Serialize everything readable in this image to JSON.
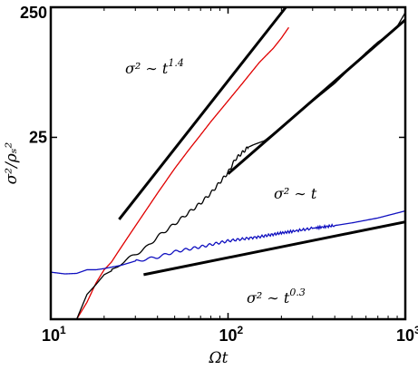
{
  "chart_data": {
    "type": "line",
    "title": "",
    "xlabel": "Ωt",
    "ylabel": "σ²/ρₛ²",
    "x_scale": "log",
    "y_scale": "log",
    "xlim": [
      10,
      1000
    ],
    "ylim": [
      1,
      250
    ],
    "grid": false,
    "x_ticks": [
      {
        "value": 10,
        "base": "10",
        "exp": "1"
      },
      {
        "value": 100,
        "base": "10",
        "exp": "2"
      },
      {
        "value": 1000,
        "base": "10",
        "exp": "3"
      }
    ],
    "y_ticks": [
      {
        "value": 25,
        "label": "25"
      },
      {
        "value": 250,
        "label": "250"
      }
    ],
    "series": [
      {
        "color": "#e00000",
        "x": [
          14,
          16,
          18,
          20,
          22,
          24,
          27,
          30,
          35,
          40,
          50,
          60,
          70,
          80,
          100,
          120,
          150,
          180,
          200,
          220
        ],
        "y": [
          1.0,
          1.35,
          1.9,
          2.4,
          2.75,
          3.3,
          4.2,
          5.2,
          7.1,
          9.3,
          14.4,
          20.0,
          26.1,
          33.0,
          47.7,
          64.5,
          94,
          121,
          145,
          175
        ]
      },
      {
        "color": "#000000",
        "x": [
          14,
          16,
          18,
          20,
          22,
          25,
          30,
          35,
          40,
          50,
          60,
          70,
          80,
          90,
          100,
          110,
          120,
          130,
          140,
          160,
          200,
          250,
          300,
          400,
          500,
          600,
          700,
          800,
          900,
          1000
        ],
        "y": [
          1.0,
          1.55,
          1.85,
          2.2,
          2.35,
          2.7,
          3.15,
          3.6,
          4.3,
          5.4,
          6.6,
          7.8,
          9.3,
          11.3,
          13.4,
          17.0,
          19.0,
          21.0,
          22.0,
          23.5,
          29.8,
          38.9,
          47.3,
          65,
          87.7,
          112,
          135,
          153,
          178,
          228
        ]
      },
      {
        "color": "#1010c0",
        "x": [
          10,
          12,
          14,
          16,
          18,
          20,
          25,
          30,
          40,
          50,
          70,
          100,
          150,
          200,
          300,
          400,
          500,
          700,
          1000
        ],
        "y": [
          2.3,
          2.23,
          2.25,
          2.4,
          2.4,
          2.45,
          2.6,
          2.8,
          3.0,
          3.3,
          3.6,
          4.0,
          4.3,
          4.6,
          5.0,
          5.25,
          5.5,
          6.0,
          6.8
        ]
      }
    ],
    "reference_lines": [
      {
        "label_base": "σ² ∼ t",
        "label_exp": "1.4",
        "x": [
          24.3,
          212
        ],
        "y": [
          5.85,
          250
        ],
        "color": "#000000"
      },
      {
        "label_base": "σ² ∼ t",
        "label_exp": "",
        "x": [
          100,
          1000
        ],
        "y": [
          13.1,
          200
        ],
        "color": "#000000"
      },
      {
        "label_base": "σ² ∼ t",
        "label_exp": "0.3",
        "x": [
          33.4,
          1000
        ],
        "y": [
          2.2,
          5.6
        ],
        "color": "#000000"
      }
    ]
  }
}
